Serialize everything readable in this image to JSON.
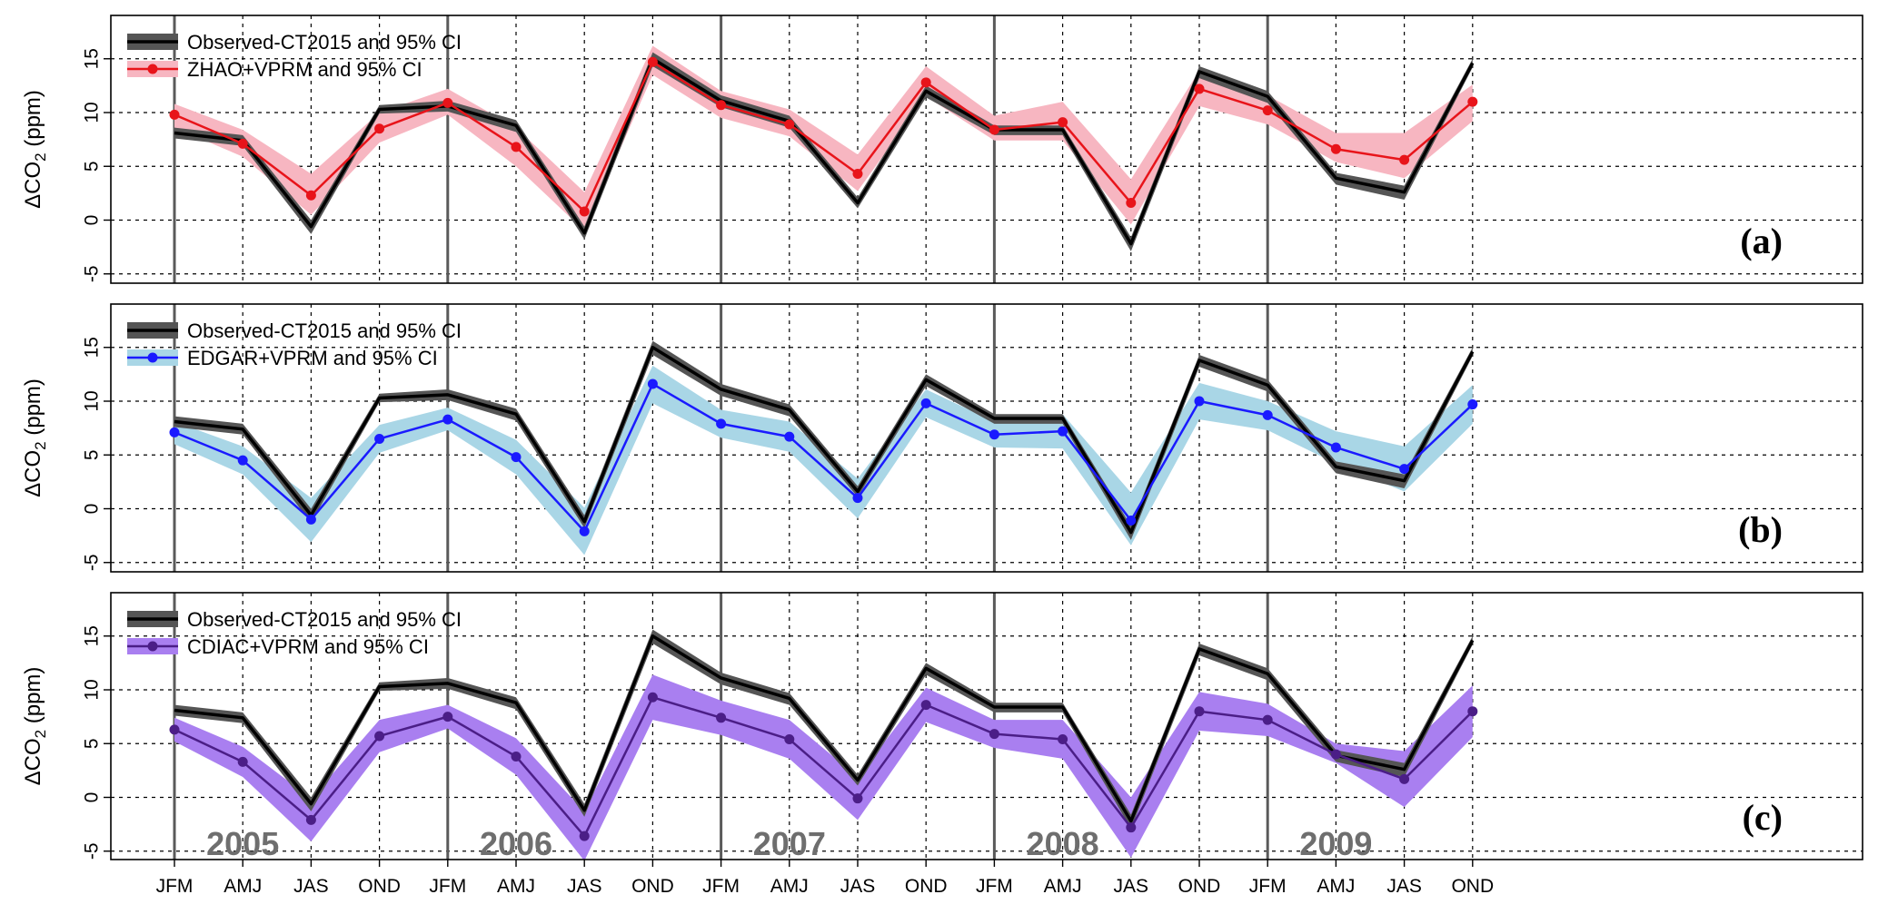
{
  "chart_data": {
    "type": "line",
    "ylabel_prefix": "ΔCO",
    "ylabel_sub": "2",
    "ylabel_suffix": " (ppm)",
    "ylim": [
      -6,
      19
    ],
    "yticks": [
      "-5",
      "0",
      "5",
      "10",
      "15"
    ],
    "categories": [
      "JFM",
      "AMJ",
      "JAS",
      "OND",
      "JFM",
      "AMJ",
      "JAS",
      "OND",
      "JFM",
      "AMJ",
      "JAS",
      "OND",
      "JFM",
      "AMJ",
      "JAS",
      "OND",
      "JFM",
      "AMJ",
      "JAS",
      "OND"
    ],
    "years": [
      "2005",
      "2006",
      "2007",
      "2008",
      "2009"
    ],
    "grid": true,
    "legend_position": "top-left",
    "observed": {
      "name": "Observed-CT2015 and 95% CI",
      "color": "#000000",
      "band_color": "#555555",
      "values": [
        8.1,
        7.4,
        -0.6,
        10.3,
        10.6,
        8.8,
        -1.2,
        15.0,
        11.1,
        9.2,
        1.6,
        12.0,
        8.4,
        8.4,
        -2.2,
        13.8,
        11.5,
        3.9,
        2.6,
        14.6
      ],
      "lower": [
        7.6,
        6.9,
        -1.3,
        9.9,
        10.1,
        8.2,
        -1.8,
        14.3,
        10.5,
        8.6,
        1.1,
        11.4,
        7.9,
        7.9,
        -2.9,
        13.2,
        10.9,
        3.3,
        1.9,
        14.2
      ],
      "upper": [
        8.6,
        7.9,
        0.0,
        10.7,
        11.1,
        9.3,
        -0.6,
        15.6,
        11.6,
        9.7,
        2.1,
        12.5,
        8.8,
        8.8,
        -1.6,
        14.3,
        12.0,
        4.4,
        3.2,
        15.0
      ]
    },
    "panels": [
      {
        "label": "(a)",
        "model": {
          "name": "ZHAO+VPRM and 95% CI",
          "color": "#e8141a",
          "band_color": "#f7b6c1",
          "values": [
            9.8,
            7.1,
            2.3,
            8.5,
            10.9,
            6.8,
            0.8,
            14.7,
            10.7,
            8.9,
            4.3,
            12.8,
            8.4,
            9.1,
            1.6,
            12.2,
            10.2,
            6.6,
            5.6,
            11.0
          ],
          "lower": [
            8.6,
            5.9,
            0.5,
            7.2,
            9.8,
            5.0,
            -1.0,
            13.5,
            9.5,
            7.8,
            2.7,
            11.5,
            7.4,
            7.4,
            -0.4,
            10.6,
            8.9,
            5.4,
            3.9,
            9.2
          ],
          "upper": [
            10.8,
            8.4,
            4.3,
            10.0,
            12.2,
            8.6,
            2.6,
            16.2,
            12.0,
            10.3,
            6.1,
            14.3,
            9.7,
            11.0,
            3.8,
            13.9,
            11.6,
            8.1,
            8.1,
            12.6
          ]
        }
      },
      {
        "label": "(b)",
        "model": {
          "name": "EDGAR+VPRM and 95% CI",
          "color": "#1a1aff",
          "band_color": "#a9d6e6",
          "values": [
            7.1,
            4.5,
            -1.0,
            6.5,
            8.3,
            4.8,
            -2.1,
            11.6,
            7.9,
            6.7,
            1.0,
            9.8,
            6.9,
            7.2,
            -1.1,
            10.0,
            8.7,
            5.7,
            3.7,
            9.7
          ],
          "lower": [
            6.0,
            3.2,
            -3.1,
            5.2,
            7.3,
            3.2,
            -4.3,
            9.8,
            6.6,
            5.3,
            -0.9,
            8.5,
            5.7,
            5.6,
            -3.4,
            8.3,
            7.3,
            4.2,
            1.6,
            7.9
          ],
          "upper": [
            8.1,
            5.8,
            1.0,
            7.8,
            9.4,
            6.4,
            0.1,
            13.3,
            9.2,
            8.1,
            2.8,
            11.1,
            8.1,
            8.8,
            1.5,
            11.7,
            10.0,
            7.2,
            5.8,
            11.5
          ]
        }
      },
      {
        "label": "(c)",
        "model": {
          "name": "CDIAC+VPRM and 95% CI",
          "color": "#4b1e87",
          "band_color": "#a97ff0",
          "values": [
            6.3,
            3.3,
            -2.1,
            5.7,
            7.5,
            3.8,
            -3.6,
            9.3,
            7.4,
            5.4,
            -0.1,
            8.6,
            5.9,
            5.4,
            -2.8,
            8.0,
            7.2,
            4.0,
            1.7,
            8.0
          ],
          "lower": [
            5.2,
            1.9,
            -4.1,
            4.2,
            6.4,
            2.1,
            -5.9,
            7.2,
            5.8,
            3.6,
            -2.1,
            7.0,
            4.6,
            3.6,
            -5.6,
            6.2,
            5.7,
            3.2,
            -0.9,
            5.6
          ],
          "upper": [
            7.4,
            4.7,
            -0.1,
            7.2,
            8.6,
            5.5,
            -1.3,
            11.4,
            9.0,
            7.2,
            1.9,
            10.2,
            7.2,
            7.2,
            0.0,
            9.8,
            8.7,
            5.0,
            4.3,
            10.4
          ]
        }
      }
    ]
  }
}
